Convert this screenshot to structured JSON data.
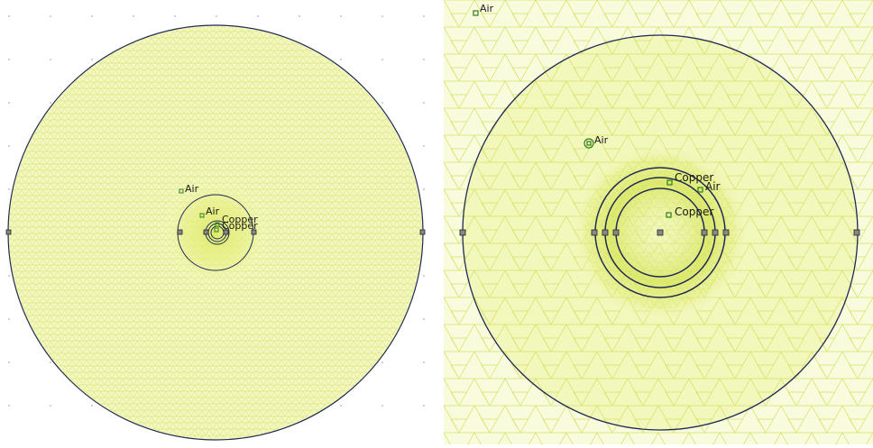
{
  "left_view": {
    "labels": {
      "air_outer": "Air",
      "air_inner": "Air",
      "copper_1": "Copper",
      "copper_2": "Copper"
    }
  },
  "right_view": {
    "labels": {
      "air_corner": "Air",
      "air_left": "Air",
      "copper_top": "Copper",
      "air_right": "Air",
      "copper_center": "Copper"
    }
  },
  "colors": {
    "mesh_fill": "#f2f7b8",
    "mesh_dense": "#e3ee7e",
    "mesh_line": "#d4e05a",
    "boundary": "#1f2a55",
    "label_marker": "#2f7d1a",
    "node": "#222222"
  }
}
